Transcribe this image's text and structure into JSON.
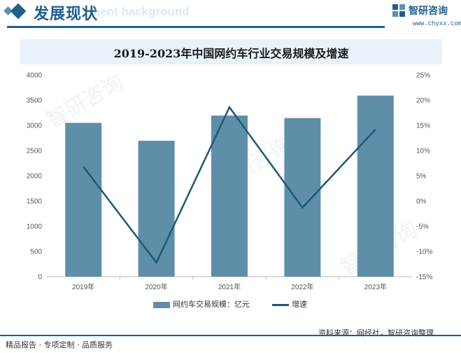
{
  "header": {
    "title": "发展现状",
    "ghost_text": "ment background",
    "brand_name": "智研咨询",
    "brand_url": "www.chyxx.com"
  },
  "chart_data": {
    "type": "bar+line",
    "title": "2019-2023年中国网约车行业交易规模及增速",
    "categories": [
      "2019年",
      "2020年",
      "2021年",
      "2022年",
      "2023年"
    ],
    "series": [
      {
        "name": "网约车交易规模：亿元",
        "type": "bar",
        "axis": "left",
        "values": [
          3050,
          2695,
          3195,
          3145,
          3590
        ],
        "color": "#5f8fa8"
      },
      {
        "name": "增速",
        "type": "line",
        "axis": "right",
        "values": [
          6.8,
          -12.2,
          18.6,
          -1.3,
          14.2
        ],
        "color": "#1c5a78"
      }
    ],
    "y_left": {
      "min": 0,
      "max": 4000,
      "ticks": [
        "0",
        "500",
        "1000",
        "1500",
        "2000",
        "2500",
        "3000",
        "3500",
        "4000"
      ]
    },
    "y_right": {
      "min": -15,
      "max": 25,
      "ticks": [
        "-15%",
        "-10%",
        "-5%",
        "0%",
        "5%",
        "10%",
        "15%",
        "20%",
        "25%"
      ]
    },
    "legend_position": "bottom",
    "grid": false
  },
  "footer": {
    "left": "精品报告 · 专项定制 · 品质服务",
    "source": "资料来源：网经社，智研咨询整理"
  },
  "watermark_text": "智研咨询"
}
